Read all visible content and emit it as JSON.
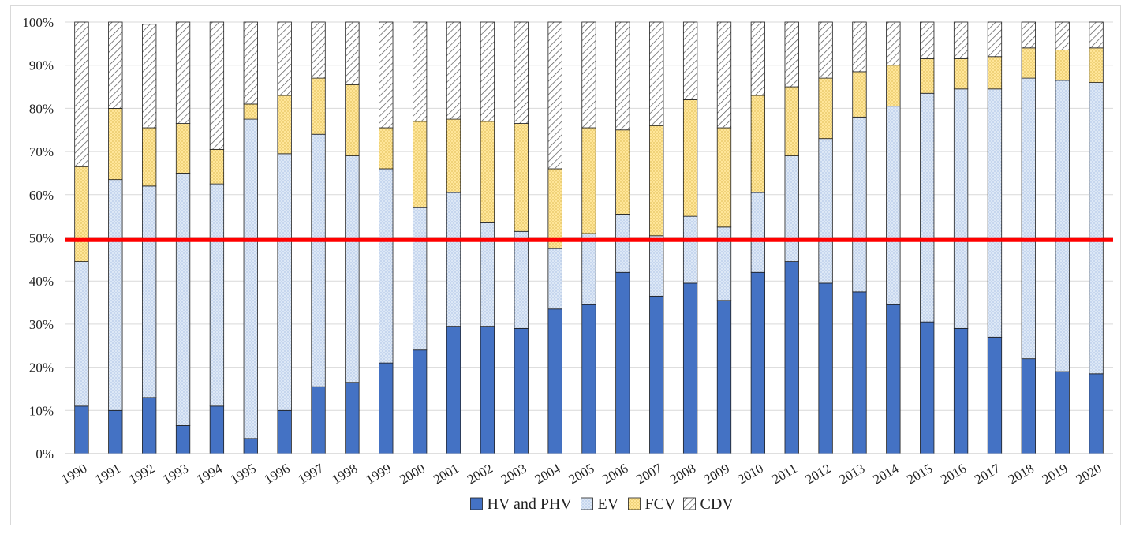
{
  "chart_data": {
    "type": "bar",
    "stacked": true,
    "categories": [
      "1990",
      "1991",
      "1992",
      "1993",
      "1994",
      "1995",
      "1996",
      "1997",
      "1998",
      "1999",
      "2000",
      "2001",
      "2002",
      "2003",
      "2004",
      "2005",
      "2006",
      "2007",
      "2008",
      "2009",
      "2010",
      "2011",
      "2012",
      "2013",
      "2014",
      "2015",
      "2016",
      "2017",
      "2018",
      "2019",
      "2020"
    ],
    "series": [
      {
        "name": "HV and PHV",
        "color": "#4472c4",
        "pattern": "solid",
        "values": [
          11,
          10,
          13,
          6.5,
          11,
          3.5,
          10,
          15.5,
          16.5,
          21,
          24,
          29.5,
          29.5,
          29,
          33.5,
          34.5,
          42,
          36.5,
          39.5,
          35.5,
          42,
          44.5,
          39.5,
          37.5,
          34.5,
          30.5,
          29,
          27,
          22,
          19,
          18.5
        ]
      },
      {
        "name": "EV",
        "color": "#dde8f6",
        "pattern": "dotted",
        "values": [
          33.5,
          53.5,
          49,
          58.5,
          51.5,
          74,
          59.5,
          58.5,
          52.5,
          45,
          33,
          31,
          24,
          22.5,
          14,
          16.5,
          13.5,
          14,
          15.5,
          17,
          18.5,
          24.5,
          33.5,
          40.5,
          46,
          53,
          55.5,
          57.5,
          65,
          67.5,
          67.5
        ]
      },
      {
        "name": "FCV",
        "color": "#ffe699",
        "pattern": "dotted",
        "values": [
          22,
          16.5,
          13.5,
          11.5,
          8,
          3.5,
          13.5,
          13,
          16.5,
          9.5,
          20,
          17,
          23.5,
          25,
          18.5,
          24.5,
          19.5,
          25.5,
          27,
          23,
          22.5,
          16,
          14,
          10.5,
          9.5,
          8,
          7,
          7.5,
          7,
          7,
          8
        ]
      },
      {
        "name": "CDV",
        "color": "#ffffff",
        "pattern": "hatched",
        "values": [
          33.5,
          20,
          24,
          23.5,
          29.5,
          19,
          17,
          13,
          14.5,
          24.5,
          23,
          22.5,
          23,
          23.5,
          34,
          24.5,
          25,
          24,
          18,
          24.5,
          17,
          15,
          13,
          11.5,
          10,
          8.5,
          8.5,
          8,
          6,
          6.5,
          6
        ]
      }
    ],
    "reference_line": {
      "value": 49.5,
      "color": "#ff0000"
    },
    "ylim": [
      0,
      100
    ],
    "yticks": [
      "0%",
      "10%",
      "20%",
      "30%",
      "40%",
      "50%",
      "60%",
      "70%",
      "80%",
      "90%",
      "100%"
    ],
    "legend_position": "bottom",
    "grid": true,
    "title": "",
    "xlabel": "",
    "ylabel": ""
  }
}
